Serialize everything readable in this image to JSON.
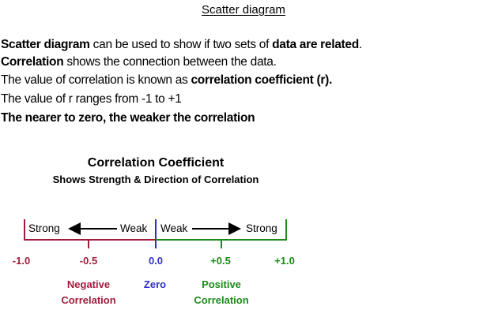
{
  "page_title": "Scatter diagram",
  "lines": {
    "line1": {
      "bold1": "Scatter diagram",
      "text1": " can be used to show if two sets of ",
      "bold2": "data are related",
      "text2": "."
    },
    "line2": {
      "bold1": "Correlation",
      "text1": " shows the connection between the data."
    },
    "line3": {
      "text1": "The value of correlation is known as ",
      "bold1": "correlation coefficient (r)."
    },
    "line4": {
      "text1": "The value of r ranges from -1 to +1"
    },
    "line5": {
      "text1": "The nearer to zero, the weaker the correlation"
    }
  },
  "diagram": {
    "title": "Correlation Coefficient",
    "subtitle": "Shows Strength & Direction of Correlation",
    "scale_labels": {
      "left_strong": "Strong",
      "left_weak": "Weak",
      "right_weak": "Weak",
      "right_strong": "Strong"
    },
    "ticks": [
      "-1.0",
      "-0.5",
      "0.0",
      "+0.5",
      "+1.0"
    ],
    "categories": {
      "negative_line1": "Negative",
      "negative_line2": "Correlation",
      "zero": "Zero",
      "positive_line1": "Positive",
      "positive_line2": "Correlation"
    },
    "colors": {
      "negative": "#a01c3c",
      "zero": "#3030c8",
      "positive": "#1a8a1a",
      "arrow": "#000000"
    }
  }
}
